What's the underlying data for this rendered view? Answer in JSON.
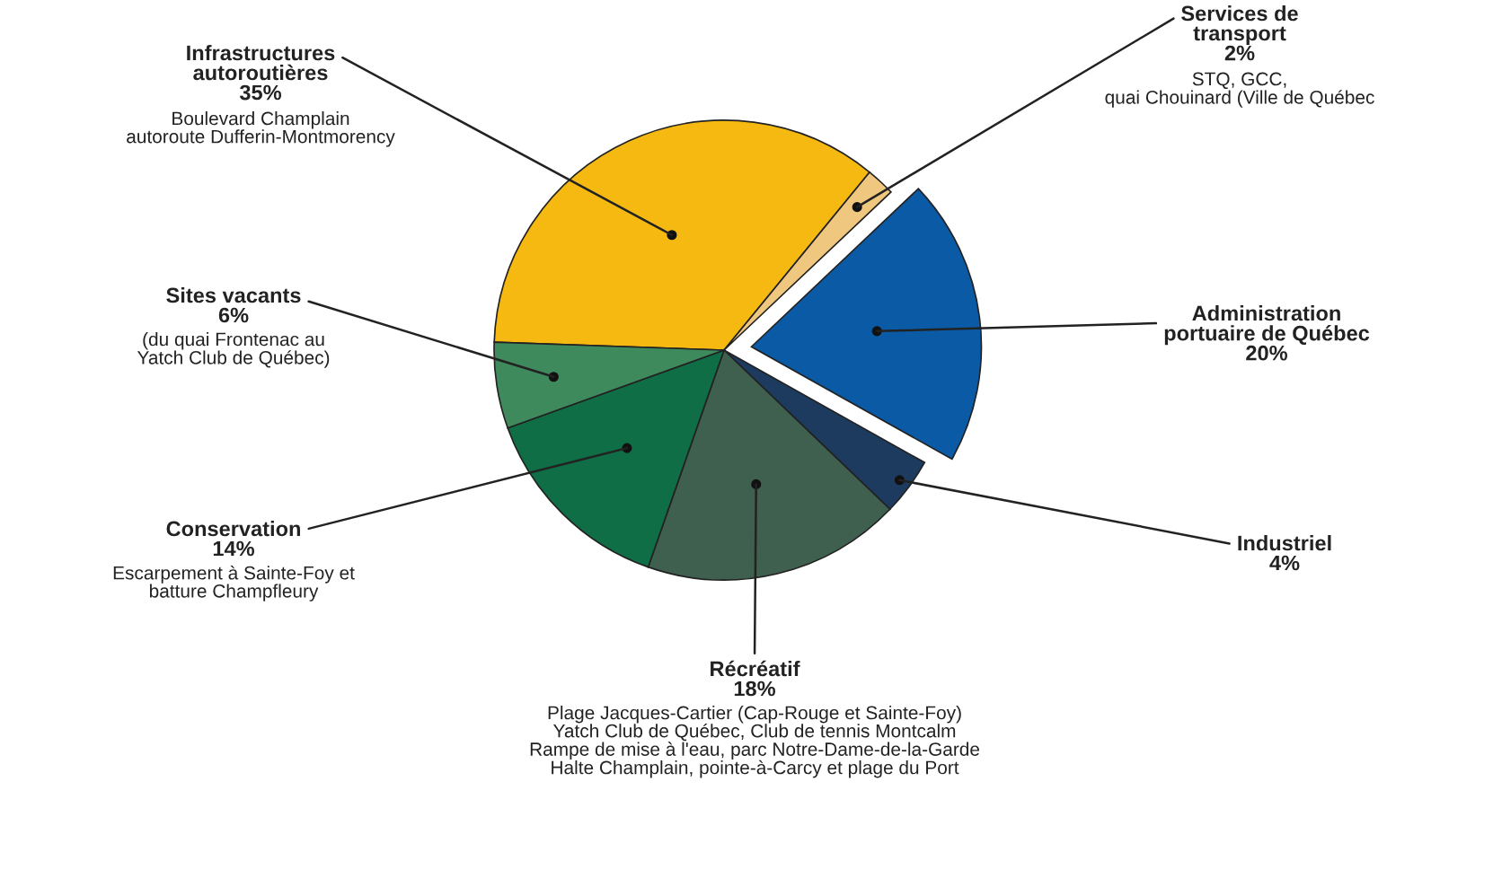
{
  "chart_data": {
    "type": "pie",
    "categories": [
      "Infrastructures\nautoroutières",
      "Services de\ntransport",
      "Administration\nportuaire de Québec",
      "Industriel",
      "Récréatif",
      "Conservation",
      "Sites vacants"
    ],
    "values": [
      35,
      2,
      20,
      4,
      18,
      14,
      6
    ],
    "value_labels": [
      "35%",
      "2%",
      "20%",
      "4%",
      "18%",
      "14%",
      "6%"
    ],
    "colors": [
      "#f5b912",
      "#f0c77e",
      "#0b5aa6",
      "#1d3b5e",
      "#3f5f4f",
      "#0f6e46",
      "#3f8a5c"
    ],
    "annotations": [
      {
        "text": "Boulevard Champlain\nautoroute Dufferin-Montmorency",
        "x": "Infrastructures\nautoroutières"
      },
      {
        "text": "STQ, GCC,\nquai Chouinard (Ville de Québec",
        "x": "Services de\ntransport"
      },
      {
        "text": "(du quai Frontenac au\nYatch Club de Québec)",
        "x": "Sites vacants"
      },
      {
        "text": "Escarpement à Sainte-Foy et\nbatture Champfleury",
        "x": "Conservation"
      },
      {
        "text": "Plage Jacques-Cartier (Cap-Rouge et Sainte-Foy)\nYatch Club de Québec, Club de tennis Montcalm\nRampe de mise à l'eau, parc Notre-Dame-de-la-Garde\nHalte Champlain, pointe-à-Carcy et plage du Port",
        "x": "Récréatif"
      }
    ],
    "legend": false
  }
}
